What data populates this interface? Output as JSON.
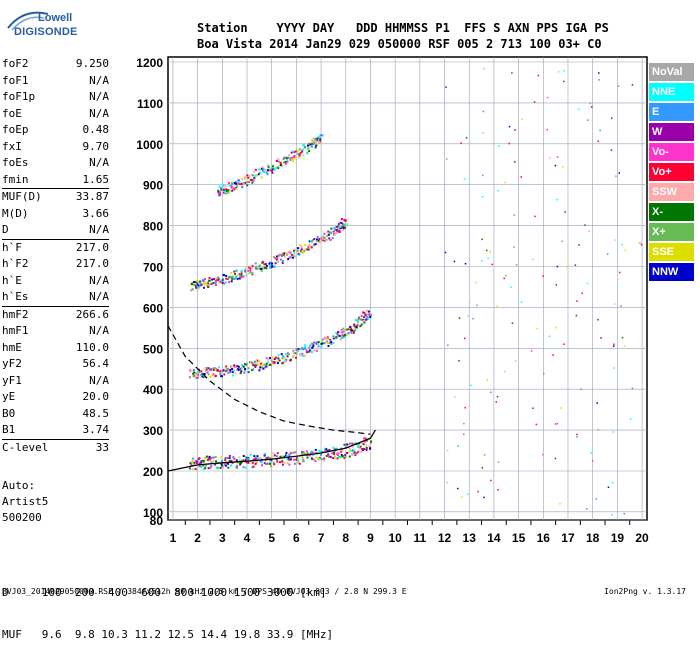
{
  "logo": {
    "line1": "Lowell",
    "line2": "DIGISONDE"
  },
  "header": {
    "line1": "Station    YYYY DAY   DDD HHMMSS P1  FFS S AXN PPS IGA PS",
    "line2": "Boa Vista 2014 Jan29 029 050000 RSF 005 2 713 100 03+ C0"
  },
  "params_group1": [
    {
      "k": "foF2",
      "v": "9.250"
    },
    {
      "k": "foF1",
      "v": "N/A"
    },
    {
      "k": "foF1p",
      "v": "N/A"
    },
    {
      "k": "foE",
      "v": "N/A"
    },
    {
      "k": "foEp",
      "v": "0.48"
    },
    {
      "k": "fxI",
      "v": "9.70"
    },
    {
      "k": "foEs",
      "v": "N/A"
    },
    {
      "k": "fmin",
      "v": "1.65"
    }
  ],
  "params_group2": [
    {
      "k": "MUF(D)",
      "v": "33.87"
    },
    {
      "k": "M(D)",
      "v": "3.66"
    },
    {
      "k": "D",
      "v": "N/A"
    }
  ],
  "params_group3": [
    {
      "k": "h`F",
      "v": "217.0"
    },
    {
      "k": "h`F2",
      "v": "217.0"
    },
    {
      "k": "h`E",
      "v": "N/A"
    },
    {
      "k": "h`Es",
      "v": "N/A"
    }
  ],
  "params_group4": [
    {
      "k": "hmF2",
      "v": "266.6"
    },
    {
      "k": "hmF1",
      "v": "N/A"
    },
    {
      "k": "hmE",
      "v": "110.0"
    },
    {
      "k": "yF2",
      "v": "56.4"
    },
    {
      "k": "yF1",
      "v": "N/A"
    },
    {
      "k": "yE",
      "v": "20.0"
    },
    {
      "k": "B0",
      "v": "48.5"
    },
    {
      "k": "B1",
      "v": "3.74"
    }
  ],
  "params_group5": [
    {
      "k": "C-level",
      "v": "33"
    }
  ],
  "auto": {
    "line1": "Auto:",
    "line2": "Artist5",
    "line3": "500200"
  },
  "legend": [
    {
      "label": "NoVal",
      "color": "#a8a8a8"
    },
    {
      "label": "NNE",
      "color": "#00ffff"
    },
    {
      "label": "E",
      "color": "#3399ff"
    },
    {
      "label": "W",
      "color": "#9900aa"
    },
    {
      "label": "Vo-",
      "color": "#ff33cc"
    },
    {
      "label": "Vo+",
      "color": "#ff0033"
    },
    {
      "label": "SSW",
      "color": "#ffaaaa"
    },
    {
      "label": "X-",
      "color": "#007700"
    },
    {
      "label": "X+",
      "color": "#66bb55"
    },
    {
      "label": "SSE",
      "color": "#dddd00"
    },
    {
      "label": "NNW",
      "color": "#0000cc"
    }
  ],
  "bottom": {
    "line1": "D     100  200  400  600  800 1000 1500 3000 [km]",
    "line2": "MUF   9.6  9.8 10.3 11.2 12.5 14.4 19.8 33.9 [MHz]"
  },
  "footer": {
    "left": "BVJ03_2014029050000.RSF / 384fx512h 50 kHz 2.5 km / DPS-4D BVJ03 003 / 2.8 N 299.3 E",
    "right": "Ion2Png v. 1.3.17"
  },
  "chart_data": {
    "type": "scatter",
    "xlabel": "",
    "ylabel": "",
    "xlim": [
      0.8,
      20.2
    ],
    "ylim": [
      80,
      1210
    ],
    "xticks": [
      "1",
      "2",
      "3",
      "4",
      "5",
      "6",
      "7",
      "8",
      "9",
      "10",
      "11",
      "12",
      "13",
      "14",
      "15",
      "16",
      "17",
      "18",
      "19",
      "20"
    ],
    "yticks": [
      "80",
      "100",
      "200",
      "300",
      "400",
      "500",
      "600",
      "700",
      "800",
      "900",
      "1000",
      "1100",
      "1200"
    ],
    "series": [
      {
        "name": "O-trace 1st hop",
        "x": [
          1.7,
          2.5,
          3.5,
          4.5,
          5.5,
          6.5,
          7.5,
          8.3,
          9.0
        ],
        "y": [
          220,
          222,
          224,
          227,
          232,
          238,
          245,
          255,
          275
        ]
      },
      {
        "name": "O-trace 2nd hop",
        "x": [
          1.7,
          2.5,
          3.5,
          4.5,
          5.5,
          6.5,
          7.5,
          8.3,
          9.0
        ],
        "y": [
          440,
          442,
          450,
          462,
          478,
          500,
          525,
          555,
          595
        ]
      },
      {
        "name": "O-trace 3rd hop",
        "x": [
          1.7,
          2.5,
          3.5,
          4.5,
          5.5,
          6.5,
          7.5,
          8.0
        ],
        "y": [
          655,
          665,
          680,
          700,
          725,
          755,
          785,
          815
        ]
      },
      {
        "name": "O-trace 4th hop",
        "x": [
          2.8,
          3.5,
          4.5,
          5.5,
          6.5,
          7.0
        ],
        "y": [
          885,
          900,
          930,
          960,
          995,
          1020
        ]
      },
      {
        "name": "Profile (hmF2)",
        "x": [
          0.8,
          2,
          3,
          4,
          5,
          6,
          7,
          8,
          8.5,
          9.0,
          9.2
        ],
        "y": [
          200,
          215,
          220,
          224,
          229,
          236,
          244,
          256,
          268,
          280,
          300
        ]
      },
      {
        "name": "Dashed topside",
        "x": [
          0.8,
          1.5,
          2.5,
          3.5,
          4.5,
          5.5,
          6.5,
          7.5,
          8.3,
          9.0
        ],
        "y": [
          555,
          480,
          420,
          375,
          345,
          322,
          310,
          300,
          295,
          290
        ]
      }
    ]
  }
}
